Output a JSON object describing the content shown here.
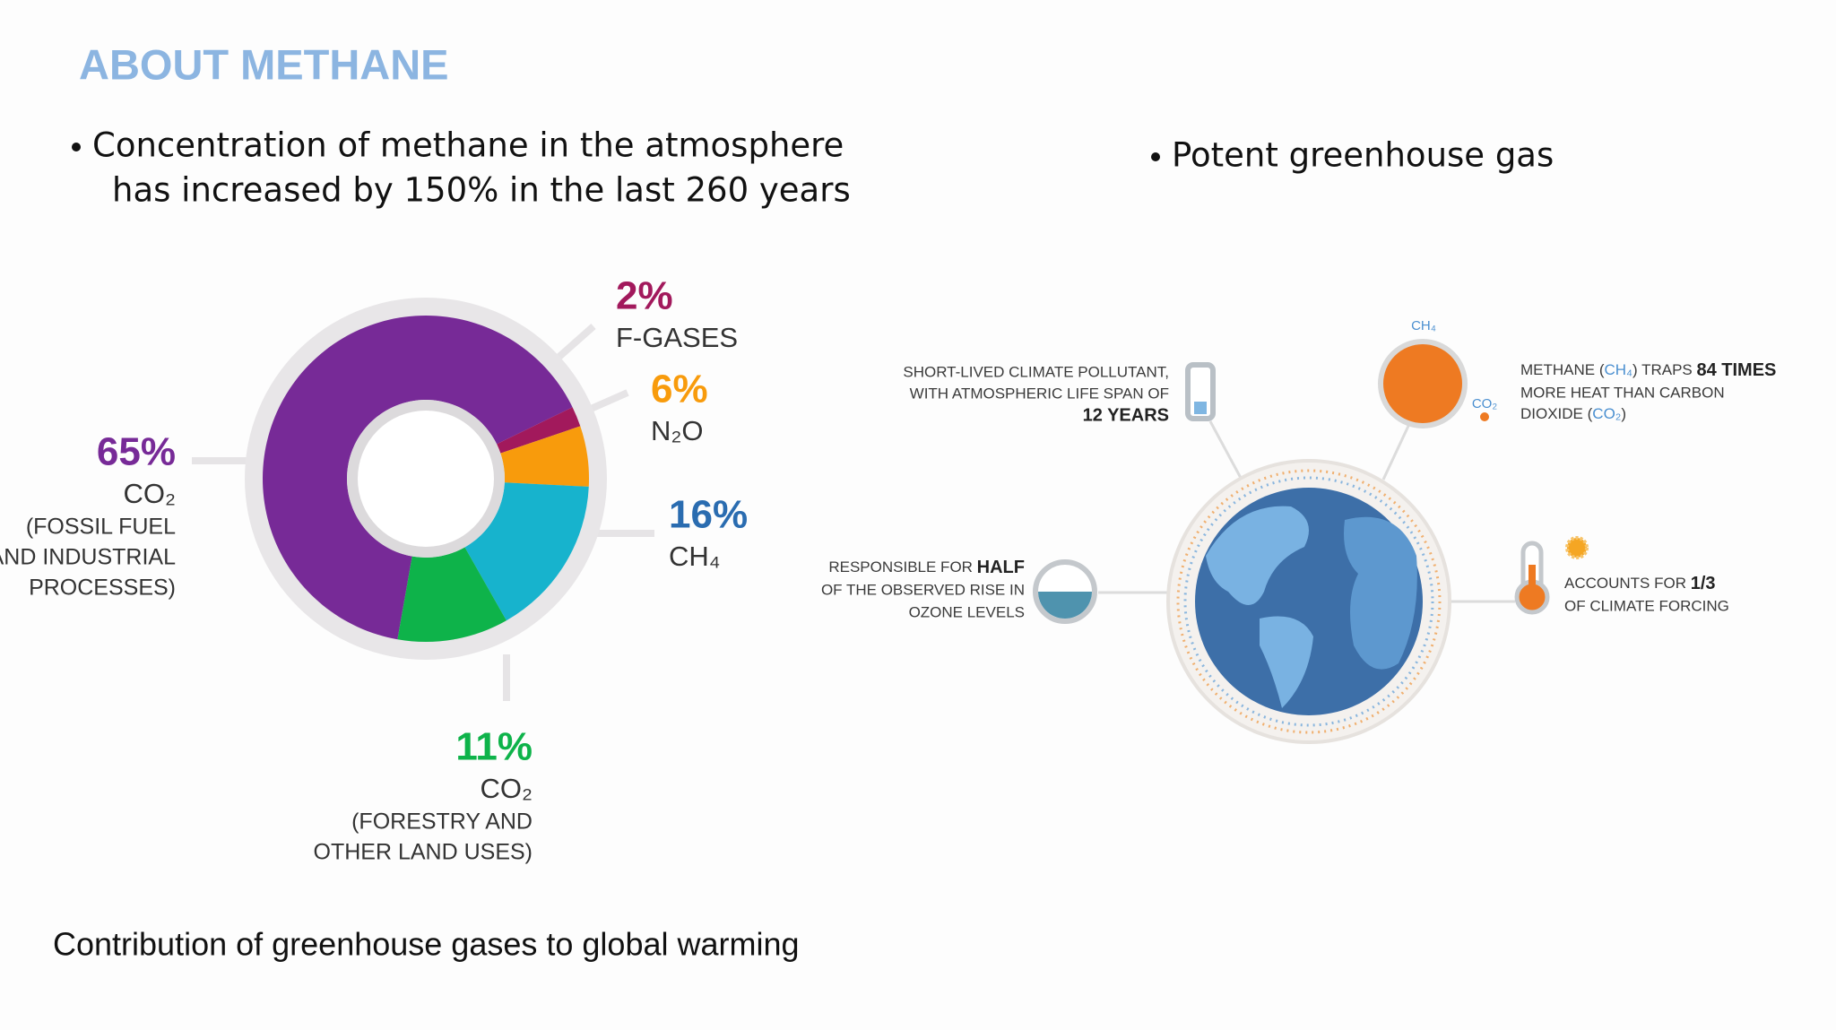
{
  "slide": {
    "title": "ABOUT METHANE",
    "bullet_left": [
      "Concentration of methane in the atmosphere",
      "has increased by 150% in the last 260 years"
    ],
    "bullet_right": "Potent greenhouse gas"
  },
  "chart_data": {
    "type": "pie",
    "categories": [
      "CO₂",
      "F-GASES",
      "N₂O",
      "CH₄",
      "CO₂"
    ],
    "descriptions": [
      [
        "(FOSSIL FUEL",
        "AND INDUSTRIAL",
        "PROCESSES)"
      ],
      [],
      [],
      [],
      [
        "(FORESTRY AND",
        "OTHER LAND USES)"
      ]
    ],
    "values": [
      65,
      2,
      6,
      16,
      11
    ],
    "value_labels": [
      "65%",
      "2%",
      "6%",
      "16%",
      "11%"
    ],
    "colors": [
      "#772a97",
      "#a2195c",
      "#f89b0c",
      "#17b3cd",
      "#0eb34a"
    ],
    "label_colors": [
      "#772a97",
      "#a2195c",
      "#f89b0c",
      "#2a6cb0",
      "#0eb34a"
    ],
    "donut": true,
    "caption": "Contribution of greenhouse gases to global warming"
  },
  "infographic": {
    "lifespan": [
      "SHORT-LIVED CLIMATE POLLUTANT,",
      "WITH ATMOSPHERIC LIFE SPAN OF",
      "12 YEARS"
    ],
    "methane_heat": [
      [
        "METHANE (",
        "CH₄",
        ") TRAPS ",
        "84 TIMES"
      ],
      [
        "MORE HEAT THAN CARBON"
      ],
      [
        "DIOXIDE (",
        "CO₂",
        ")"
      ]
    ],
    "icon_labels": [
      "CH₄",
      "CO₂"
    ],
    "ozone": [
      [
        "RESPONSIBLE FOR ",
        "HALF"
      ],
      [
        "OF THE OBSERVED RISE IN"
      ],
      [
        "OZONE LEVELS"
      ]
    ],
    "forcing": [
      [
        "ACCOUNTS FOR ",
        "1/3"
      ],
      [
        "OF CLIMATE FORCING"
      ]
    ]
  }
}
